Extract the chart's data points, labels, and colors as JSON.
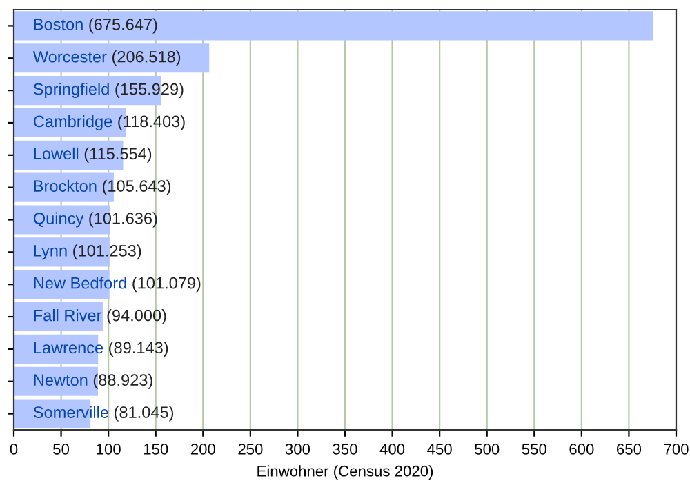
{
  "chart_data": {
    "type": "bar",
    "orientation": "horizontal",
    "xlabel": "Einwohner (Census 2020)",
    "categories": [
      "Boston",
      "Worcester",
      "Springfield",
      "Cambridge",
      "Lowell",
      "Brockton",
      "Quincy",
      "Lynn",
      "New Bedford",
      "Fall River",
      "Lawrence",
      "Newton",
      "Somerville"
    ],
    "values": [
      675.647,
      206.518,
      155.929,
      118.403,
      115.554,
      105.643,
      101.636,
      101.253,
      101.079,
      94.0,
      89.143,
      88.923,
      81.045
    ],
    "value_labels": [
      "(675.647)",
      "(206.518)",
      "(155.929)",
      "(118.403)",
      "(115.554)",
      "(105.643)",
      "(101.636)",
      "(101.253)",
      "(101.079)",
      "(94.000)",
      "(89.143)",
      "(88.923)",
      "(81.045)"
    ],
    "color": "#b3c6ff",
    "xlim": [
      0,
      700
    ],
    "xticks": [
      0,
      50,
      100,
      150,
      200,
      250,
      300,
      350,
      400,
      450,
      500,
      550,
      600,
      650,
      700
    ],
    "grid": "x",
    "tick_labels": "x"
  }
}
